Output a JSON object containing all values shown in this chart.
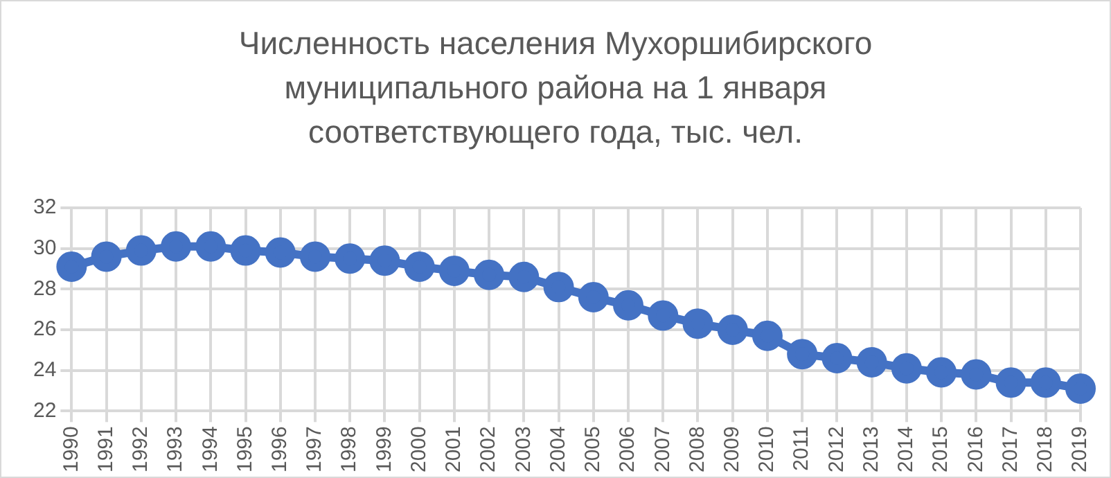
{
  "chart_data": {
    "type": "line",
    "title": "Численность населения Мухоршибирского муниципального района на 1 января соответствующего года, тыс. чел.",
    "categories": [
      "1990",
      "1991",
      "1992",
      "1993",
      "1994",
      "1995",
      "1996",
      "1997",
      "1998",
      "1999",
      "2000",
      "2001",
      "2002",
      "2003",
      "2004",
      "2005",
      "2006",
      "2007",
      "2008",
      "2009",
      "2010",
      "2011",
      "2012",
      "2013",
      "2014",
      "2015",
      "2016",
      "2017",
      "2018",
      "2019"
    ],
    "series": [
      {
        "color": "#4472c4",
        "values": [
          29.1,
          29.6,
          29.9,
          30.1,
          30.1,
          29.9,
          29.8,
          29.6,
          29.5,
          29.4,
          29.1,
          28.9,
          28.7,
          28.6,
          28.1,
          27.6,
          27.2,
          26.7,
          26.3,
          26.0,
          25.7,
          24.8,
          24.6,
          24.4,
          24.1,
          23.9,
          23.8,
          23.4,
          23.4,
          23.1
        ]
      }
    ],
    "ylim": [
      22,
      32
    ],
    "yticks": [
      22,
      24,
      26,
      28,
      30,
      32
    ],
    "grid": true,
    "legend": false,
    "marker": "circle",
    "line_style": "solid"
  }
}
